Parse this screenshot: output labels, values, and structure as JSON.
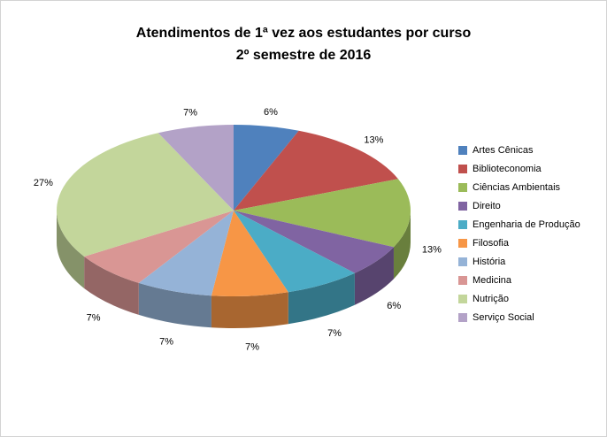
{
  "chart_data": {
    "type": "pie",
    "style": "3d-pie",
    "title_line1": "Atendimentos de 1ª vez aos estudantes por curso",
    "title_line2": "2º semestre de 2016",
    "legend_position": "right",
    "start_angle_deg": 0,
    "direction": "clockwise",
    "value_format": "percent",
    "labels": [
      "Artes Cênicas",
      "Biblioteconomia",
      "Ciências Ambientais",
      "Direito",
      "Engenharia de Produção",
      "Filosofia",
      "História",
      "Medicina",
      "Nutrição",
      "Serviço Social"
    ],
    "values": [
      6,
      13,
      13,
      6,
      7,
      7,
      7,
      7,
      27,
      7
    ],
    "data_labels": [
      "6%",
      "13%",
      "13%",
      "6%",
      "7%",
      "7%",
      "7%",
      "7%",
      "27%",
      "7%"
    ],
    "colors": [
      "#4F81BD",
      "#C0504D",
      "#9BBB59",
      "#8064A2",
      "#4BACC6",
      "#F79646",
      "#95B3D7",
      "#D99694",
      "#C3D69B",
      "#B3A2C7"
    ],
    "background_color": "#FFFFFF",
    "border_color": "#D3D3D3",
    "text_color": "#000000"
  }
}
